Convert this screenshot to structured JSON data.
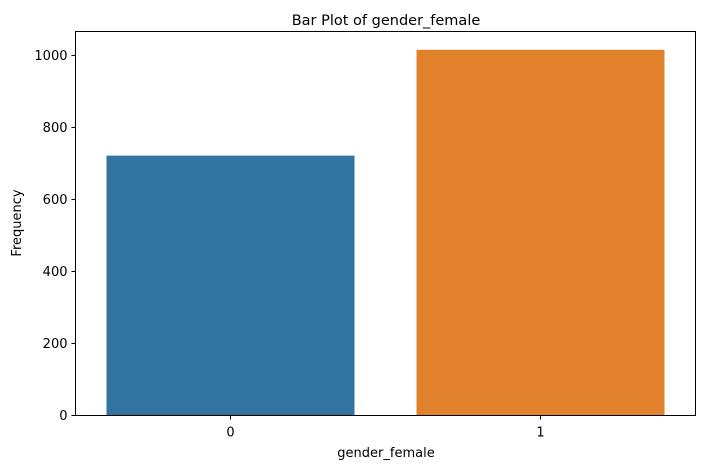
{
  "chart_data": {
    "type": "bar",
    "title": "Bar Plot of gender_female",
    "xlabel": "gender_female",
    "ylabel": "Frequency",
    "categories": [
      "0",
      "1"
    ],
    "values": [
      722,
      1016
    ],
    "colors": [
      "#3274a1",
      "#e1812c"
    ],
    "ylim": [
      0,
      1066.8
    ],
    "yticks": [
      0,
      200,
      400,
      600,
      800,
      1000
    ],
    "grid": false,
    "legend": "none"
  }
}
